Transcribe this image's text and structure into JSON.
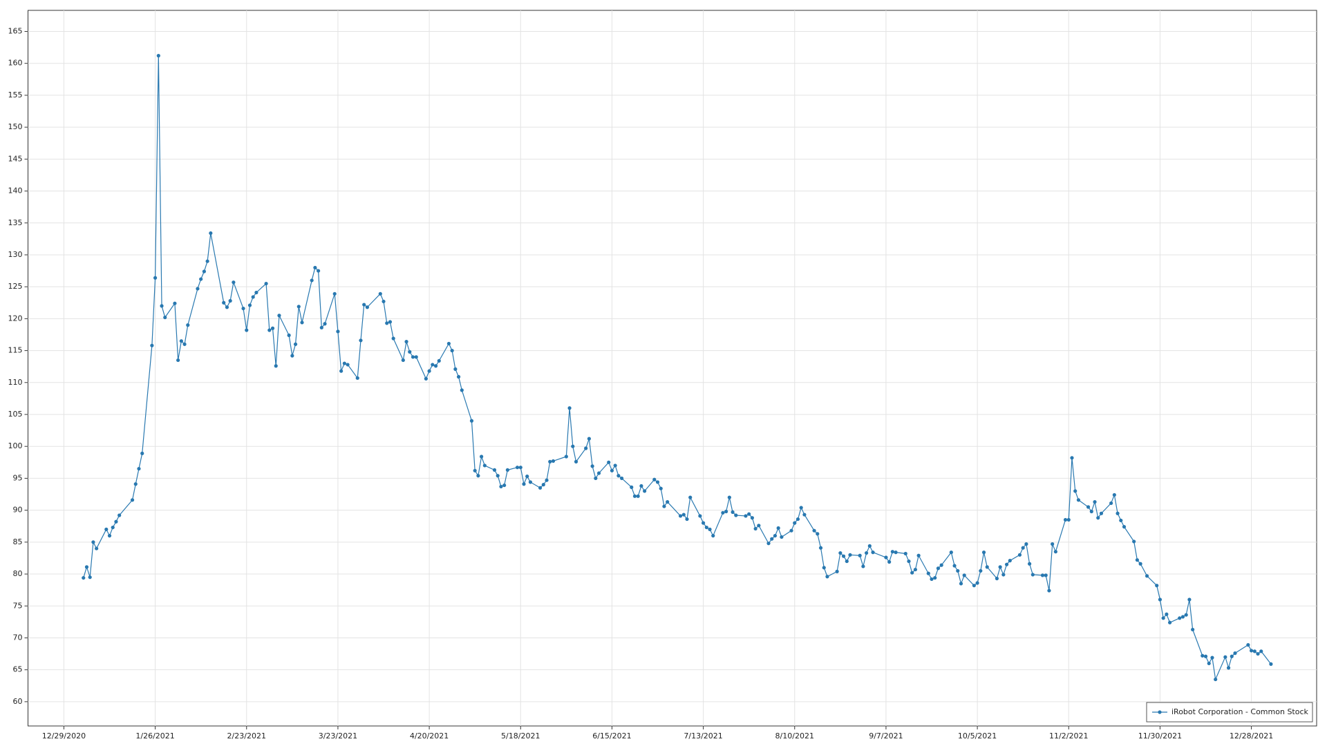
{
  "chart_data": {
    "type": "line",
    "x": [
      "1/4/2021",
      "1/5/2021",
      "1/6/2021",
      "1/7/2021",
      "1/8/2021",
      "1/11/2021",
      "1/12/2021",
      "1/13/2021",
      "1/14/2021",
      "1/15/2021",
      "1/19/2021",
      "1/20/2021",
      "1/21/2021",
      "1/22/2021",
      "1/25/2021",
      "1/26/2021",
      "1/27/2021",
      "1/28/2021",
      "1/29/2021",
      "2/1/2021",
      "2/2/2021",
      "2/3/2021",
      "2/4/2021",
      "2/5/2021",
      "2/8/2021",
      "2/9/2021",
      "2/10/2021",
      "2/11/2021",
      "2/12/2021",
      "2/16/2021",
      "2/17/2021",
      "2/18/2021",
      "2/19/2021",
      "2/22/2021",
      "2/23/2021",
      "2/24/2021",
      "2/25/2021",
      "2/26/2021",
      "3/1/2021",
      "3/2/2021",
      "3/3/2021",
      "3/4/2021",
      "3/5/2021",
      "3/8/2021",
      "3/9/2021",
      "3/10/2021",
      "3/11/2021",
      "3/12/2021",
      "3/15/2021",
      "3/16/2021",
      "3/17/2021",
      "3/18/2021",
      "3/19/2021",
      "3/22/2021",
      "3/23/2021",
      "3/24/2021",
      "3/25/2021",
      "3/26/2021",
      "3/29/2021",
      "3/30/2021",
      "3/31/2021",
      "4/1/2021",
      "4/5/2021",
      "4/6/2021",
      "4/7/2021",
      "4/8/2021",
      "4/9/2021",
      "4/12/2021",
      "4/13/2021",
      "4/14/2021",
      "4/15/2021",
      "4/16/2021",
      "4/19/2021",
      "4/20/2021",
      "4/21/2021",
      "4/22/2021",
      "4/23/2021",
      "4/26/2021",
      "4/27/2021",
      "4/28/2021",
      "4/29/2021",
      "4/30/2021",
      "5/3/2021",
      "5/4/2021",
      "5/5/2021",
      "5/6/2021",
      "5/7/2021",
      "5/10/2021",
      "5/11/2021",
      "5/12/2021",
      "5/13/2021",
      "5/14/2021",
      "5/17/2021",
      "5/18/2021",
      "5/19/2021",
      "5/20/2021",
      "5/21/2021",
      "5/24/2021",
      "5/25/2021",
      "5/26/2021",
      "5/27/2021",
      "5/28/2021",
      "6/1/2021",
      "6/2/2021",
      "6/3/2021",
      "6/4/2021",
      "6/7/2021",
      "6/8/2021",
      "6/9/2021",
      "6/10/2021",
      "6/11/2021",
      "6/14/2021",
      "6/15/2021",
      "6/16/2021",
      "6/17/2021",
      "6/18/2021",
      "6/21/2021",
      "6/22/2021",
      "6/23/2021",
      "6/24/2021",
      "6/25/2021",
      "6/28/2021",
      "6/29/2021",
      "6/30/2021",
      "7/1/2021",
      "7/2/2021",
      "7/6/2021",
      "7/7/2021",
      "7/8/2021",
      "7/9/2021",
      "7/12/2021",
      "7/13/2021",
      "7/14/2021",
      "7/15/2021",
      "7/16/2021",
      "7/19/2021",
      "7/20/2021",
      "7/21/2021",
      "7/22/2021",
      "7/23/2021",
      "7/26/2021",
      "7/27/2021",
      "7/28/2021",
      "7/29/2021",
      "7/30/2021",
      "8/2/2021",
      "8/3/2021",
      "8/4/2021",
      "8/5/2021",
      "8/6/2021",
      "8/9/2021",
      "8/10/2021",
      "8/11/2021",
      "8/12/2021",
      "8/13/2021",
      "8/16/2021",
      "8/17/2021",
      "8/18/2021",
      "8/19/2021",
      "8/20/2021",
      "8/23/2021",
      "8/24/2021",
      "8/25/2021",
      "8/26/2021",
      "8/27/2021",
      "8/30/2021",
      "8/31/2021",
      "9/1/2021",
      "9/2/2021",
      "9/3/2021",
      "9/7/2021",
      "9/8/2021",
      "9/9/2021",
      "9/10/2021",
      "9/13/2021",
      "9/14/2021",
      "9/15/2021",
      "9/16/2021",
      "9/17/2021",
      "9/20/2021",
      "9/21/2021",
      "9/22/2021",
      "9/23/2021",
      "9/24/2021",
      "9/27/2021",
      "9/28/2021",
      "9/29/2021",
      "9/30/2021",
      "10/1/2021",
      "10/4/2021",
      "10/5/2021",
      "10/6/2021",
      "10/7/2021",
      "10/8/2021",
      "10/11/2021",
      "10/12/2021",
      "10/13/2021",
      "10/14/2021",
      "10/15/2021",
      "10/18/2021",
      "10/19/2021",
      "10/20/2021",
      "10/21/2021",
      "10/22/2021",
      "10/25/2021",
      "10/26/2021",
      "10/27/2021",
      "10/28/2021",
      "10/29/2021",
      "11/1/2021",
      "11/2/2021",
      "11/3/2021",
      "11/4/2021",
      "11/5/2021",
      "11/8/2021",
      "11/9/2021",
      "11/10/2021",
      "11/11/2021",
      "11/12/2021",
      "11/15/2021",
      "11/16/2021",
      "11/17/2021",
      "11/18/2021",
      "11/19/2021",
      "11/22/2021",
      "11/23/2021",
      "11/24/2021",
      "11/26/2021",
      "11/29/2021",
      "11/30/2021",
      "12/1/2021",
      "12/2/2021",
      "12/3/2021",
      "12/6/2021",
      "12/7/2021",
      "12/8/2021",
      "12/9/2021",
      "12/10/2021",
      "12/13/2021",
      "12/14/2021",
      "12/15/2021",
      "12/16/2021",
      "12/17/2021",
      "12/20/2021",
      "12/21/2021",
      "12/22/2021",
      "12/23/2021",
      "12/27/2021",
      "12/28/2021",
      "12/29/2021",
      "12/30/2021",
      "12/31/2021",
      "1/3/2022"
    ],
    "series": [
      {
        "name": "iRobot Corporation - Common Stock",
        "color": "#2878b0",
        "values": [
          79.4,
          81.1,
          79.5,
          85,
          84,
          87,
          86,
          87.3,
          88.2,
          89.2,
          91.6,
          94.1,
          96.5,
          98.9,
          115.8,
          126.4,
          161.2,
          122,
          120.2,
          122.4,
          113.5,
          116.5,
          116,
          119,
          124.7,
          126.2,
          127.4,
          129,
          133.4,
          122.5,
          121.8,
          122.8,
          125.7,
          121.6,
          118.2,
          122.1,
          123.4,
          124.1,
          125.5,
          118.2,
          118.5,
          112.6,
          120.5,
          117.4,
          114.2,
          116,
          121.9,
          119.4,
          126,
          128,
          127.5,
          118.6,
          119.2,
          123.9,
          118,
          111.8,
          113,
          112.8,
          110.7,
          116.6,
          122.2,
          121.8,
          123.9,
          122.7,
          119.3,
          119.5,
          116.9,
          113.5,
          116.4,
          114.8,
          114,
          114,
          110.6,
          111.8,
          112.8,
          112.6,
          113.4,
          116.1,
          115,
          112.1,
          110.9,
          108.8,
          104,
          96.2,
          95.4,
          98.4,
          97,
          96.3,
          95.4,
          93.7,
          93.9,
          96.3,
          96.7,
          96.7,
          94.1,
          95.3,
          94.4,
          93.5,
          94,
          94.7,
          97.6,
          97.7,
          98.4,
          106,
          100,
          97.6,
          99.7,
          101.2,
          96.9,
          95,
          95.8,
          97.5,
          96.2,
          97,
          95.4,
          95,
          93.6,
          92.2,
          92.2,
          93.8,
          93,
          94.8,
          94.4,
          93.4,
          90.6,
          91.3,
          89.1,
          89.3,
          88.6,
          92,
          89.1,
          88,
          87.3,
          87,
          86,
          89.6,
          89.8,
          92,
          89.7,
          89.2,
          89.1,
          89.4,
          88.8,
          87.1,
          87.6,
          84.8,
          85.5,
          86,
          87.2,
          85.8,
          86.8,
          88,
          88.6,
          90.4,
          89.3,
          86.8,
          86.3,
          84.1,
          81,
          79.6,
          80.4,
          83.3,
          82.8,
          82,
          83,
          82.9,
          81.2,
          83.3,
          84.4,
          83.4,
          82.6,
          81.9,
          83.5,
          83.4,
          83.2,
          82,
          80.2,
          80.7,
          82.9,
          80.1,
          79.2,
          79.4,
          80.9,
          81.4,
          83.4,
          81.3,
          80.5,
          78.5,
          79.8,
          78.2,
          78.6,
          80.5,
          83.4,
          81.1,
          79.3,
          81.1,
          79.9,
          81.5,
          82.1,
          83,
          84.1,
          84.7,
          81.6,
          79.9,
          79.8,
          79.8,
          77.4,
          84.7,
          83.5,
          88.5,
          88.5,
          98.2,
          93,
          91.6,
          90.5,
          89.8,
          91.3,
          88.8,
          89.5,
          91.1,
          92.4,
          89.5,
          88.4,
          87.4,
          85.1,
          82.2,
          81.6,
          79.7,
          78.2,
          76,
          73.1,
          73.7,
          72.4,
          73.1,
          73.3,
          73.6,
          76,
          71.3,
          67.2,
          67.1,
          66,
          66.9,
          63.5,
          67,
          65.3,
          67.1,
          67.6,
          68.9,
          68,
          67.9,
          67.5,
          67.9,
          65.9
        ]
      }
    ],
    "xlim": [
      "12/18/2020",
      "1/17/2022"
    ],
    "xticks": [
      "12/29/2020",
      "1/26/2021",
      "2/23/2021",
      "3/23/2021",
      "4/20/2021",
      "5/18/2021",
      "6/15/2021",
      "7/13/2021",
      "8/10/2021",
      "9/7/2021",
      "10/5/2021",
      "11/2/2021",
      "11/30/2021",
      "12/28/2021"
    ],
    "ylim": [
      56.2,
      168.3
    ],
    "yticks": [
      60,
      65,
      70,
      75,
      80,
      85,
      90,
      95,
      100,
      105,
      110,
      115,
      120,
      125,
      130,
      135,
      140,
      145,
      150,
      155,
      160,
      165
    ],
    "grid": true,
    "legend": "lower-right",
    "markers": true
  }
}
